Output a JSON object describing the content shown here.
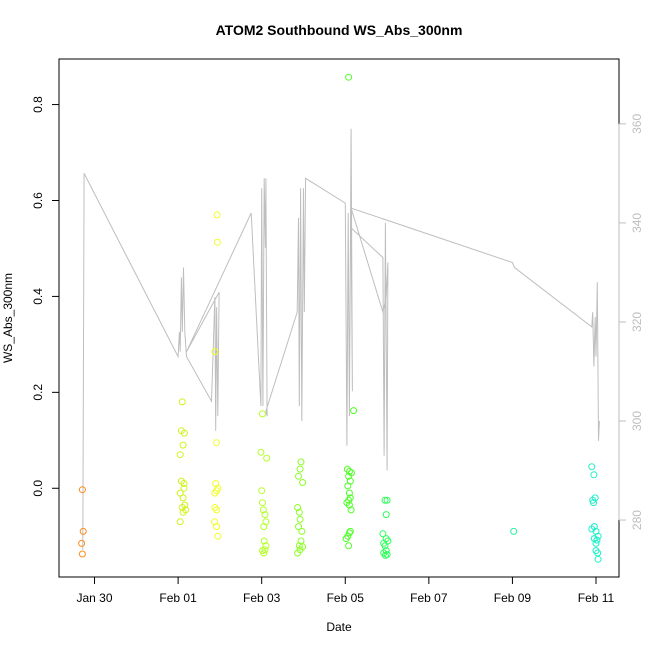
{
  "chart_data": {
    "type": "scatter",
    "title": "ATOM2 Southbound WS_Abs_300nm",
    "xlabel": "Date",
    "ylabel": "WS_Abs_300nm",
    "x_ticks": [
      "Jan 30",
      "Feb 01",
      "Feb 03",
      "Feb 05",
      "Feb 07",
      "Feb 09",
      "Feb 11"
    ],
    "x_tick_days": [
      29,
      31,
      33,
      35,
      37,
      39,
      41
    ],
    "xlim_days": [
      28.15,
      41.55
    ],
    "y_ticks": [
      0.0,
      0.2,
      0.4,
      0.6,
      0.8
    ],
    "ylim": [
      -0.185,
      0.895
    ],
    "y2_ticks": [
      280,
      300,
      320,
      340,
      360
    ],
    "y2lim": [
      268.5,
      373.1
    ],
    "grid": false,
    "colors": {
      "axis": "#000000",
      "secondary_line": "#bebebe",
      "secondary_axis": "#bebebe"
    },
    "series": [
      {
        "color": "#ff8c1a",
        "points": [
          [
            28.71,
            -0.003
          ],
          [
            28.73,
            -0.09
          ],
          [
            28.69,
            -0.115
          ],
          [
            28.71,
            -0.137
          ]
        ]
      },
      {
        "color": "#d2f21e",
        "points": [
          [
            31.05,
            0.07
          ],
          [
            31.1,
            0.18
          ],
          [
            31.08,
            0.12
          ],
          [
            31.15,
            0.115
          ],
          [
            31.12,
            0.09
          ],
          [
            31.08,
            0.015
          ],
          [
            31.14,
            0.0
          ],
          [
            31.05,
            -0.01
          ],
          [
            31.12,
            -0.02
          ],
          [
            31.1,
            -0.04
          ],
          [
            31.16,
            -0.035
          ],
          [
            31.12,
            -0.05
          ],
          [
            31.18,
            -0.045
          ],
          [
            31.05,
            -0.07
          ],
          [
            31.14,
            0.01
          ]
        ]
      },
      {
        "color": "#f0ff28",
        "points": [
          [
            31.93,
            0.57
          ],
          [
            31.94,
            0.513
          ],
          [
            31.88,
            0.285
          ],
          [
            31.92,
            0.095
          ],
          [
            31.9,
            0.01
          ],
          [
            31.92,
            -0.005
          ],
          [
            31.88,
            -0.01
          ],
          [
            31.95,
            0.0
          ],
          [
            31.88,
            -0.04
          ],
          [
            31.92,
            -0.045
          ],
          [
            31.87,
            -0.07
          ],
          [
            31.92,
            -0.08
          ],
          [
            31.95,
            -0.1
          ]
        ]
      },
      {
        "color": "#b4ff28",
        "points": [
          [
            33.02,
            0.155
          ],
          [
            32.98,
            0.075
          ],
          [
            33.12,
            0.063
          ],
          [
            33.0,
            -0.005
          ],
          [
            33.02,
            -0.03
          ],
          [
            33.08,
            -0.055
          ],
          [
            33.04,
            -0.045
          ],
          [
            33.1,
            -0.07
          ],
          [
            33.05,
            -0.08
          ],
          [
            33.06,
            -0.11
          ],
          [
            33.1,
            -0.12
          ],
          [
            33.02,
            -0.13
          ],
          [
            33.05,
            -0.135
          ],
          [
            33.08,
            -0.128
          ]
        ]
      },
      {
        "color": "#8cff28",
        "points": [
          [
            33.88,
            0.025
          ],
          [
            33.94,
            0.055
          ],
          [
            33.92,
            0.04
          ],
          [
            33.98,
            0.012
          ],
          [
            33.86,
            -0.04
          ],
          [
            33.9,
            -0.05
          ],
          [
            33.92,
            -0.065
          ],
          [
            33.88,
            -0.08
          ],
          [
            33.96,
            -0.09
          ],
          [
            33.94,
            -0.11
          ],
          [
            33.9,
            -0.12
          ],
          [
            33.98,
            -0.122
          ],
          [
            33.92,
            -0.128
          ],
          [
            33.86,
            -0.135
          ]
        ]
      },
      {
        "color": "#50ff28",
        "points": [
          [
            35.08,
            0.857
          ],
          [
            35.2,
            0.162
          ],
          [
            35.05,
            0.04
          ],
          [
            35.1,
            0.035
          ],
          [
            35.15,
            0.032
          ],
          [
            35.08,
            0.025
          ],
          [
            35.12,
            0.015
          ],
          [
            35.06,
            0.005
          ],
          [
            35.1,
            -0.01
          ],
          [
            35.12,
            -0.02
          ],
          [
            35.08,
            -0.025
          ],
          [
            35.04,
            -0.03
          ],
          [
            35.1,
            -0.035
          ],
          [
            35.14,
            -0.045
          ],
          [
            35.06,
            -0.1
          ],
          [
            35.12,
            -0.09
          ],
          [
            35.1,
            -0.093
          ],
          [
            35.02,
            -0.105
          ],
          [
            35.08,
            -0.12
          ]
        ]
      },
      {
        "color": "#2eff5a",
        "points": [
          [
            35.95,
            -0.025
          ],
          [
            36.0,
            -0.025
          ],
          [
            35.98,
            -0.055
          ],
          [
            35.9,
            -0.095
          ],
          [
            35.98,
            -0.105
          ],
          [
            36.02,
            -0.11
          ],
          [
            35.92,
            -0.115
          ],
          [
            35.95,
            -0.12
          ],
          [
            35.98,
            -0.13
          ],
          [
            35.92,
            -0.135
          ],
          [
            35.96,
            -0.14
          ],
          [
            36.0,
            -0.138
          ]
        ]
      },
      {
        "color": "#28f0a0",
        "points": [
          [
            39.03,
            -0.09
          ]
        ]
      },
      {
        "color": "#1ef0c8",
        "points": [
          [
            40.9,
            0.045
          ],
          [
            40.95,
            0.028
          ],
          [
            40.98,
            -0.02
          ],
          [
            40.92,
            -0.025
          ],
          [
            40.94,
            -0.03
          ],
          [
            40.96,
            -0.08
          ],
          [
            40.9,
            -0.085
          ],
          [
            41.0,
            -0.09
          ],
          [
            41.05,
            -0.1
          ],
          [
            40.96,
            -0.105
          ],
          [
            41.02,
            -0.108
          ],
          [
            41.0,
            -0.115
          ],
          [
            41.0,
            -0.13
          ],
          [
            41.04,
            -0.135
          ],
          [
            41.05,
            -0.148
          ]
        ]
      }
    ],
    "secondary_line": {
      "comment": "grey line plotted against the right axis",
      "points": [
        [
          28.72,
          274
        ],
        [
          28.75,
          350
        ],
        [
          31.0,
          313
        ],
        [
          31.03,
          318
        ],
        [
          31.05,
          314
        ],
        [
          31.08,
          329
        ],
        [
          31.1,
          318
        ],
        [
          31.13,
          331
        ],
        [
          31.16,
          318
        ],
        [
          31.2,
          313
        ],
        [
          31.8,
          304
        ],
        [
          31.88,
          325
        ],
        [
          31.9,
          298
        ],
        [
          31.92,
          323
        ],
        [
          31.95,
          301
        ],
        [
          31.98,
          326
        ],
        [
          31.2,
          314
        ],
        [
          32.75,
          342
        ],
        [
          32.98,
          303
        ],
        [
          33.0,
          347
        ],
        [
          33.03,
          303
        ],
        [
          33.06,
          349
        ],
        [
          33.09,
          335
        ],
        [
          33.1,
          349
        ],
        [
          33.13,
          301
        ],
        [
          33.1,
          302
        ],
        [
          33.85,
          322
        ],
        [
          33.88,
          341
        ],
        [
          33.9,
          303
        ],
        [
          33.93,
          347
        ],
        [
          33.96,
          300
        ],
        [
          34.0,
          347
        ],
        [
          34.02,
          322
        ],
        [
          34.05,
          349
        ],
        [
          35.0,
          344
        ],
        [
          35.04,
          295
        ],
        [
          35.07,
          342
        ],
        [
          35.1,
          301
        ],
        [
          35.14,
          359
        ],
        [
          35.17,
          306
        ],
        [
          35.14,
          339
        ],
        [
          35.9,
          333
        ],
        [
          35.93,
          293
        ],
        [
          35.96,
          340
        ],
        [
          36.0,
          290
        ],
        [
          36.02,
          332
        ],
        [
          35.98,
          325
        ],
        [
          35.9,
          322
        ],
        [
          35.14,
          343
        ],
        [
          39.0,
          332
        ],
        [
          39.05,
          331
        ],
        [
          40.9,
          319
        ],
        [
          40.92,
          322
        ],
        [
          40.95,
          311
        ],
        [
          40.98,
          321
        ],
        [
          41.0,
          313
        ],
        [
          41.03,
          328
        ],
        [
          41.06,
          296
        ],
        [
          41.08,
          300
        ]
      ]
    }
  }
}
